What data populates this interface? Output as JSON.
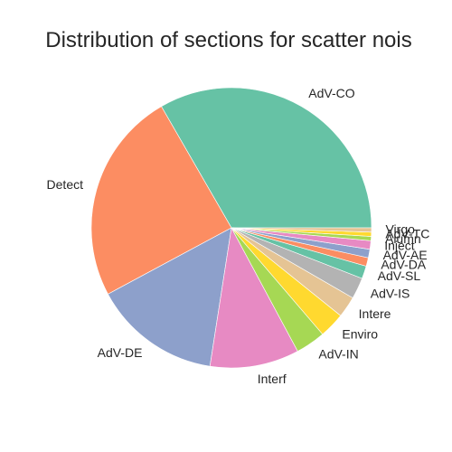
{
  "chart_data": {
    "type": "pie",
    "title": "Distribution of sections for scatter nois",
    "start_angle_deg": 0,
    "direction": "counterclockwise",
    "slices": [
      {
        "label": "AdV-CO",
        "value": 34.0,
        "color": "#66c2a5"
      },
      {
        "label": "Detect",
        "value": 25.0,
        "color": "#fc8d62"
      },
      {
        "label": "AdV-DE",
        "value": 15.0,
        "color": "#8da0cb"
      },
      {
        "label": "Interf",
        "value": 10.5,
        "color": "#e78ac3"
      },
      {
        "label": "AdV-IN",
        "value": 3.5,
        "color": "#a6d854"
      },
      {
        "label": "Enviro",
        "value": 3.0,
        "color": "#ffd92f"
      },
      {
        "label": "Intere",
        "value": 2.5,
        "color": "#e5c494"
      },
      {
        "label": "AdV-IS",
        "value": 2.5,
        "color": "#b3b3b3"
      },
      {
        "label": "AdV-SL",
        "value": 1.5,
        "color": "#66c2a5"
      },
      {
        "label": "AdV-DA",
        "value": 1.0,
        "color": "#fc8d62"
      },
      {
        "label": "AdV-AE",
        "value": 1.0,
        "color": "#8da0cb"
      },
      {
        "label": "Inject",
        "value": 1.0,
        "color": "#e78ac3"
      },
      {
        "label": "Alumn",
        "value": 0.5,
        "color": "#a6d854"
      },
      {
        "label": "AdV-TC",
        "value": 0.5,
        "color": "#ffd92f"
      },
      {
        "label": "Virgo",
        "value": 0.5,
        "color": "#e5c494"
      }
    ]
  }
}
